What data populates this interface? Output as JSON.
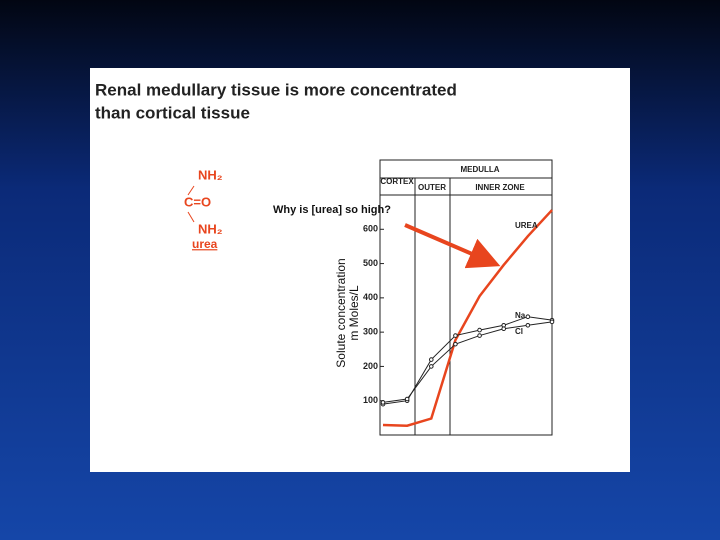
{
  "slide": {
    "title_lines": [
      "Renal medullary tissue is more concentrated",
      "than cortical tissue"
    ],
    "molecule": {
      "top": "NH₂",
      "middle": "C=O",
      "bottom": "NH₂",
      "name": "urea"
    }
  },
  "chart_data": {
    "type": "line",
    "question": "Why is [urea] so high?",
    "y_label": [
      "Solute concentration",
      "m Moles/L"
    ],
    "zones": {
      "cortex": "CORTEX",
      "medulla": "MEDULLA",
      "outer": "OUTER",
      "inner": "INNER ZONE"
    },
    "categories": [
      null,
      null,
      null,
      null,
      null,
      null,
      null,
      null
    ],
    "series": [
      {
        "name": "UREA",
        "color": "#e8451e",
        "values": [
          29,
          27,
          48,
          277,
          405,
          496,
          580,
          656
        ]
      },
      {
        "name": "Na",
        "color": "#222222",
        "values": [
          90,
          100,
          220,
          290,
          306,
          320,
          345,
          335
        ]
      },
      {
        "name": "Cl",
        "color": "#222222",
        "values": [
          95,
          105,
          200,
          265,
          290,
          310,
          320,
          330
        ]
      }
    ],
    "ylim": [
      0,
      700
    ],
    "yticks": [
      100,
      200,
      300,
      400,
      500,
      600
    ]
  }
}
